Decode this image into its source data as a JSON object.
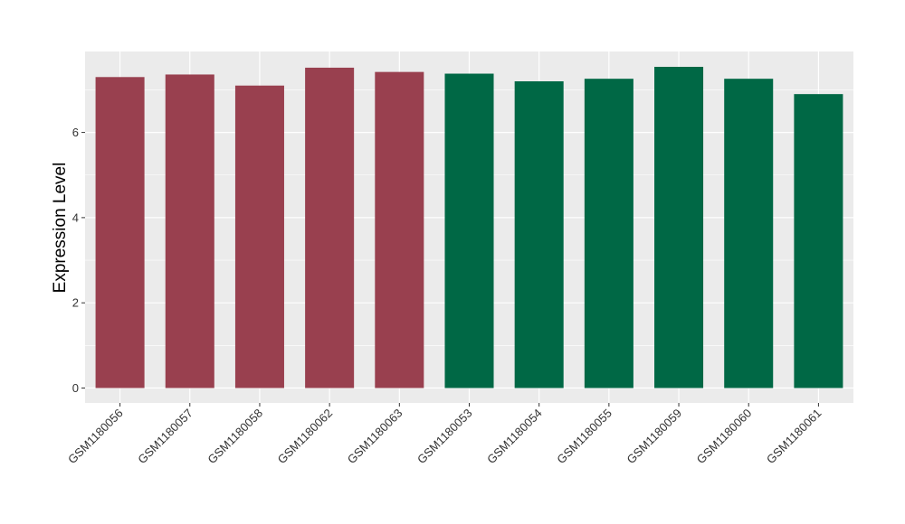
{
  "chart_data": {
    "type": "bar",
    "categories": [
      "GSM1180056",
      "GSM1180057",
      "GSM1180058",
      "GSM1180062",
      "GSM1180063",
      "GSM1180053",
      "GSM1180054",
      "GSM1180055",
      "GSM1180059",
      "GSM1180060",
      "GSM1180061"
    ],
    "values": [
      7.3,
      7.36,
      7.1,
      7.52,
      7.42,
      7.38,
      7.2,
      7.26,
      7.54,
      7.26,
      6.9
    ],
    "groups": [
      1,
      1,
      1,
      1,
      1,
      2,
      2,
      2,
      2,
      2,
      2
    ],
    "group_colors": {
      "1": "#99404f",
      "2": "#006845"
    },
    "title": "",
    "xlabel": "",
    "ylabel": "Expression Level",
    "ylim": [
      -0.35,
      7.9
    ],
    "yticks": [
      0,
      2,
      4,
      6
    ],
    "grid": true,
    "legend": "none",
    "panel_color": "#ebebeb",
    "grid_color": "#ffffff"
  }
}
